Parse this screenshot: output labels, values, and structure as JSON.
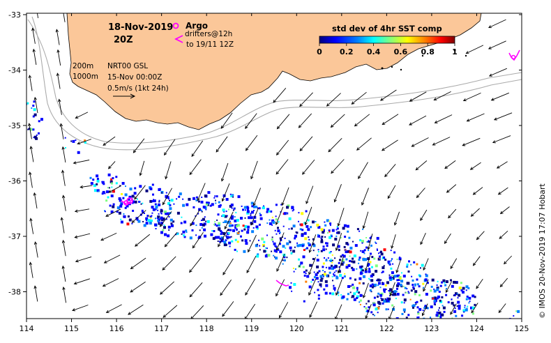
{
  "title": {
    "date": "18-Nov-2019",
    "time": "20Z"
  },
  "legend": {
    "argo_label": "Argo",
    "drifters_label": "drifters@12h",
    "drifters_to": "to 19/11 12Z",
    "colorbar_title": "std dev of 4hr SST comp",
    "colorbar_ticks": [
      "0",
      "0.2",
      "0.4",
      "0.6",
      "0.8",
      "1"
    ],
    "colorbar_colors": [
      "#00007f",
      "#0000ff",
      "#0080ff",
      "#00ffff",
      "#80ff80",
      "#ffff00",
      "#ff8000",
      "#ff0000",
      "#7f0000"
    ]
  },
  "notes": {
    "depth_200": "200m",
    "depth_1000": "1000m",
    "product": "NRT00 GSL",
    "analysis_time": "15-Nov 00:00Z",
    "scale": "0.5m/s (1kt 24h)"
  },
  "credit": "© IMOS 20-Nov-2019 17:07 Hobart",
  "axes": {
    "x_ticks": [
      "114",
      "115",
      "116",
      "117",
      "118",
      "119",
      "120",
      "121",
      "122",
      "123",
      "124",
      "125"
    ],
    "y_ticks": [
      "-33",
      "-34",
      "-35",
      "-36",
      "-37",
      "-38"
    ]
  },
  "colors": {
    "land": "#fbc799",
    "argo": "#ff00ff",
    "drifter": "#ff00ff",
    "isobath": "#aaaaaa"
  }
}
